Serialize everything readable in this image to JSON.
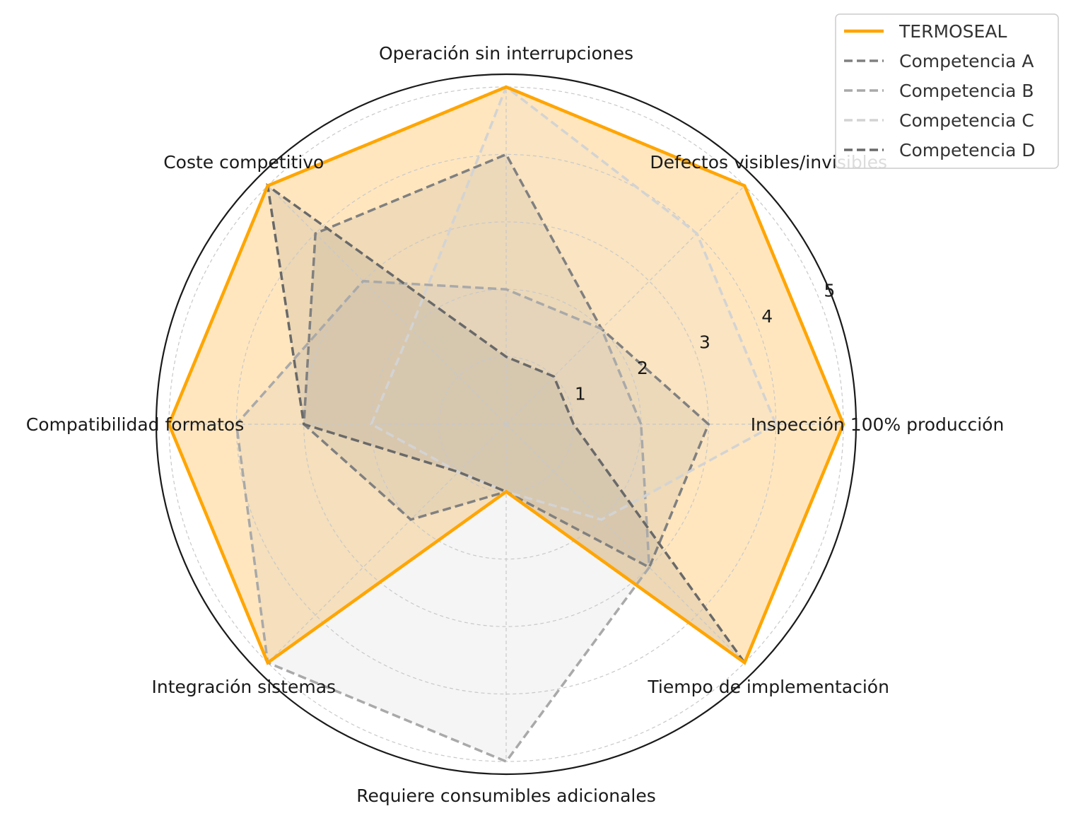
{
  "chart_data": {
    "type": "radar",
    "axes": [
      "Inspección 100% producción",
      "Defectos visibles/invisibles",
      "Operación sin interrupciones",
      "Coste competitivo",
      "Compatibilidad formatos",
      "Integración sistemas",
      "Requiere consumibles adicionales",
      "Tiempo de implementación"
    ],
    "rlim": [
      0,
      5
    ],
    "rticks": [
      1,
      2,
      3,
      4,
      5
    ],
    "rtick_labels": [
      "1",
      "2",
      "3",
      "4",
      "5"
    ],
    "grid": true,
    "legend_position": "top-right",
    "series": [
      {
        "name": "TERMOSEAL",
        "values": [
          5,
          5,
          5,
          5,
          5,
          5,
          1,
          5
        ],
        "color": "#ffa500",
        "linestyle": "solid",
        "fill": "#ffe6bf"
      },
      {
        "name": "Competencia A",
        "values": [
          3,
          2,
          4,
          4,
          3,
          2,
          1,
          3
        ],
        "color": "#808080",
        "linestyle": "dashed",
        "fill": "#808080"
      },
      {
        "name": "Competencia B",
        "values": [
          2,
          2,
          2,
          3,
          4,
          5,
          5,
          3
        ],
        "color": "#a9a9a9",
        "linestyle": "dashed",
        "fill": "#a9a9a9"
      },
      {
        "name": "Competencia C",
        "values": [
          4,
          4,
          5,
          2,
          2,
          1,
          1,
          2
        ],
        "color": "#d3d3d3",
        "linestyle": "dashed",
        "fill": "#d3d3d3"
      },
      {
        "name": "Competencia D",
        "values": [
          1,
          1,
          1,
          5,
          3,
          1,
          1,
          5
        ],
        "color": "#696969",
        "linestyle": "dashed",
        "fill": "#696969"
      }
    ]
  }
}
